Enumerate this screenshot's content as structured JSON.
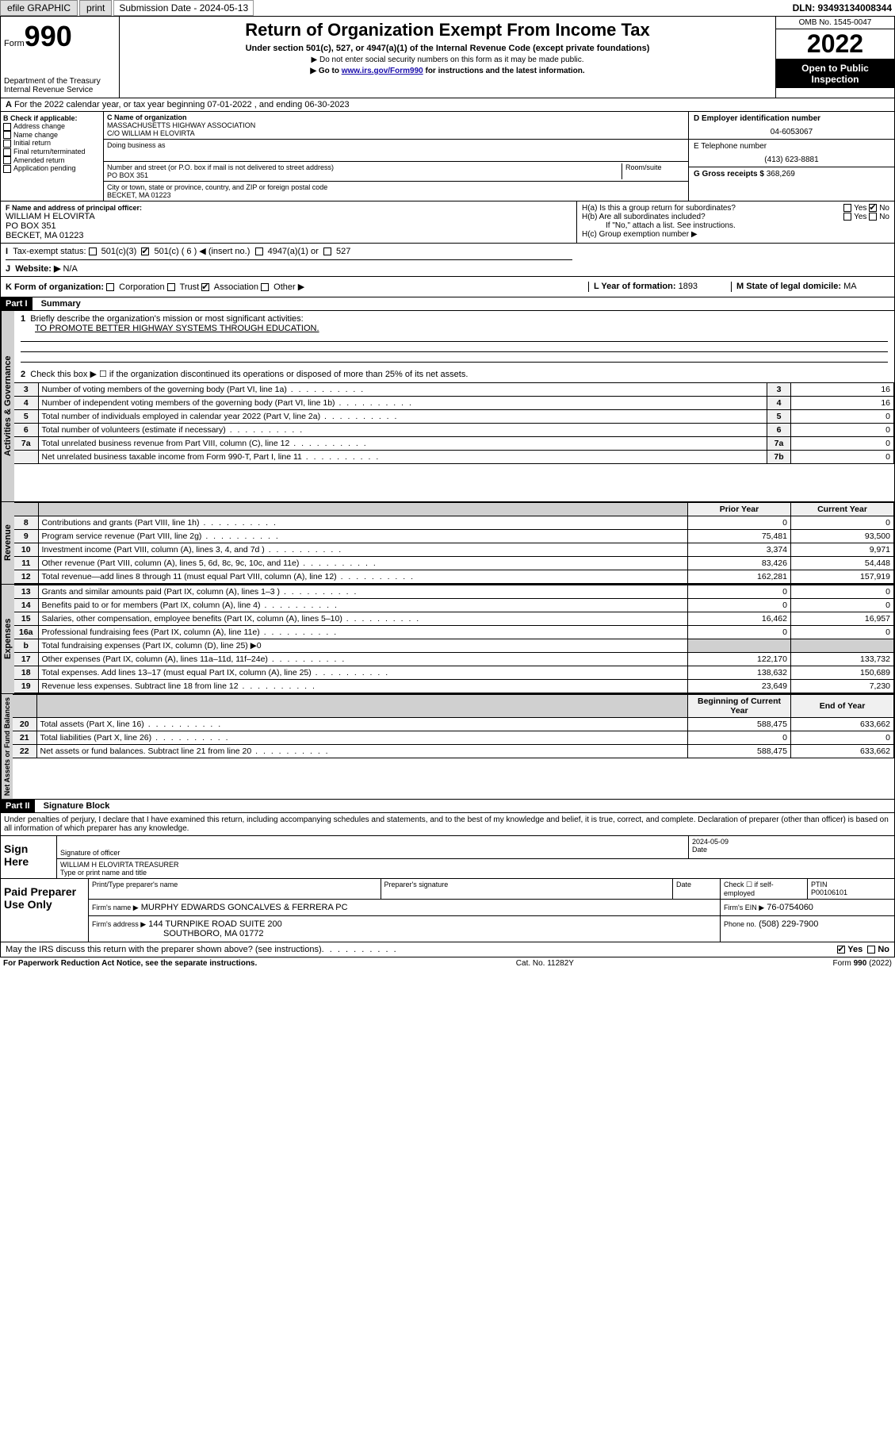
{
  "topbar": {
    "efile": "efile GRAPHIC",
    "print": "print",
    "sub_label": "Submission Date - 2024-05-13",
    "dln": "DLN: 93493134008344"
  },
  "header": {
    "form_word": "Form",
    "form_num": "990",
    "dept": "Department of the Treasury",
    "irs": "Internal Revenue Service",
    "title": "Return of Organization Exempt From Income Tax",
    "subtitle": "Under section 501(c), 527, or 4947(a)(1) of the Internal Revenue Code (except private foundations)",
    "note1": "▶ Do not enter social security numbers on this form as it may be made public.",
    "note2_pre": "▶ Go to ",
    "note2_link": "www.irs.gov/Form990",
    "note2_post": " for instructions and the latest information.",
    "omb": "OMB No. 1545-0047",
    "year": "2022",
    "open": "Open to Public Inspection"
  },
  "A": {
    "text": "For the 2022 calendar year, or tax year beginning 07-01-2022    , and ending 06-30-2023"
  },
  "B": {
    "title": "B Check if applicable:",
    "items": [
      "Address change",
      "Name change",
      "Initial return",
      "Final return/terminated",
      "Amended return",
      "Application pending"
    ]
  },
  "C": {
    "name_label": "C Name of organization",
    "name1": "MASSACHUSETTS HIGHWAY ASSOCIATION",
    "name2": "C/O WILLIAM H ELOVIRTA",
    "dba_label": "Doing business as",
    "street_label": "Number and street (or P.O. box if mail is not delivered to street address)",
    "room_label": "Room/suite",
    "street": "PO BOX 351",
    "city_label": "City or town, state or province, country, and ZIP or foreign postal code",
    "city": "BECKET, MA  01223"
  },
  "D": {
    "label": "D Employer identification number",
    "val": "04-6053067"
  },
  "E": {
    "label": "E Telephone number",
    "val": "(413) 623-8881"
  },
  "G": {
    "label": "G Gross receipts $",
    "val": "368,269"
  },
  "F": {
    "label": "F  Name and address of principal officer:",
    "l1": "WILLIAM H ELOVIRTA",
    "l2": "PO BOX 351",
    "l3": "BECKET, MA  01223"
  },
  "H": {
    "a": "H(a)  Is this a group return for subordinates?",
    "b": "H(b)  Are all subordinates included?",
    "b_note": "If \"No,\" attach a list. See instructions.",
    "c": "H(c)  Group exemption number ▶"
  },
  "I": {
    "label": "Tax-exempt status:",
    "o1": "501(c)(3)",
    "o2": "501(c) ( 6 ) ◀ (insert no.)",
    "o3": "4947(a)(1) or",
    "o4": "527"
  },
  "J": {
    "label": "Website: ▶",
    "val": "N/A"
  },
  "K": {
    "label": "K Form of organization:",
    "opts": [
      "Corporation",
      "Trust",
      "Association",
      "Other ▶"
    ],
    "checked": 2
  },
  "L": {
    "label": "L Year of formation:",
    "val": "1893"
  },
  "M": {
    "label": "M State of legal domicile:",
    "val": "MA"
  },
  "part1": {
    "header": "Part I",
    "title": "Summary",
    "q1": "Briefly describe the organization's mission or most significant activities:",
    "q1v": "TO PROMOTE BETTER HIGHWAY SYSTEMS THROUGH EDUCATION.",
    "q2": "Check this box ▶ ☐  if the organization discontinued its operations or disposed of more than 25% of its net assets.",
    "vtab_gov": "Activities & Governance",
    "vtab_rev": "Revenue",
    "vtab_exp": "Expenses",
    "vtab_net": "Net Assets or Fund Balances",
    "hdr_prior": "Prior Year",
    "hdr_curr": "Current Year",
    "hdr_begin": "Beginning of Current Year",
    "hdr_end": "End of Year",
    "rows_gov": [
      {
        "n": "3",
        "label": "Number of voting members of the governing body (Part VI, line 1a)",
        "box": "3",
        "v": "16"
      },
      {
        "n": "4",
        "label": "Number of independent voting members of the governing body (Part VI, line 1b)",
        "box": "4",
        "v": "16"
      },
      {
        "n": "5",
        "label": "Total number of individuals employed in calendar year 2022 (Part V, line 2a)",
        "box": "5",
        "v": "0"
      },
      {
        "n": "6",
        "label": "Total number of volunteers (estimate if necessary)",
        "box": "6",
        "v": "0"
      },
      {
        "n": "7a",
        "label": "Total unrelated business revenue from Part VIII, column (C), line 12",
        "box": "7a",
        "v": "0"
      },
      {
        "n": "",
        "label": "Net unrelated business taxable income from Form 990-T, Part I, line 11",
        "box": "7b",
        "v": "0"
      }
    ],
    "rows_rev": [
      {
        "n": "8",
        "label": "Contributions and grants (Part VIII, line 1h)",
        "p": "0",
        "c": "0"
      },
      {
        "n": "9",
        "label": "Program service revenue (Part VIII, line 2g)",
        "p": "75,481",
        "c": "93,500"
      },
      {
        "n": "10",
        "label": "Investment income (Part VIII, column (A), lines 3, 4, and 7d )",
        "p": "3,374",
        "c": "9,971"
      },
      {
        "n": "11",
        "label": "Other revenue (Part VIII, column (A), lines 5, 6d, 8c, 9c, 10c, and 11e)",
        "p": "83,426",
        "c": "54,448"
      },
      {
        "n": "12",
        "label": "Total revenue—add lines 8 through 11 (must equal Part VIII, column (A), line 12)",
        "p": "162,281",
        "c": "157,919"
      }
    ],
    "rows_exp": [
      {
        "n": "13",
        "label": "Grants and similar amounts paid (Part IX, column (A), lines 1–3 )",
        "p": "0",
        "c": "0"
      },
      {
        "n": "14",
        "label": "Benefits paid to or for members (Part IX, column (A), line 4)",
        "p": "0",
        "c": "0"
      },
      {
        "n": "15",
        "label": "Salaries, other compensation, employee benefits (Part IX, column (A), lines 5–10)",
        "p": "16,462",
        "c": "16,957"
      },
      {
        "n": "16a",
        "label": "Professional fundraising fees (Part IX, column (A), line 11e)",
        "p": "0",
        "c": "0"
      },
      {
        "n": "b",
        "label": "Total fundraising expenses (Part IX, column (D), line 25) ▶0",
        "p": "",
        "c": ""
      },
      {
        "n": "17",
        "label": "Other expenses (Part IX, column (A), lines 11a–11d, 11f–24e)",
        "p": "122,170",
        "c": "133,732"
      },
      {
        "n": "18",
        "label": "Total expenses. Add lines 13–17 (must equal Part IX, column (A), line 25)",
        "p": "138,632",
        "c": "150,689"
      },
      {
        "n": "19",
        "label": "Revenue less expenses. Subtract line 18 from line 12",
        "p": "23,649",
        "c": "7,230"
      }
    ],
    "rows_net": [
      {
        "n": "20",
        "label": "Total assets (Part X, line 16)",
        "p": "588,475",
        "c": "633,662"
      },
      {
        "n": "21",
        "label": "Total liabilities (Part X, line 26)",
        "p": "0",
        "c": "0"
      },
      {
        "n": "22",
        "label": "Net assets or fund balances. Subtract line 21 from line 20",
        "p": "588,475",
        "c": "633,662"
      }
    ]
  },
  "part2": {
    "header": "Part II",
    "title": "Signature Block",
    "disclaimer": "Under penalties of perjury, I declare that I have examined this return, including accompanying schedules and statements, and to the best of my knowledge and belief, it is true, correct, and complete. Declaration of preparer (other than officer) is based on all information of which preparer has any knowledge.",
    "sign_here": "Sign Here",
    "sig_officer": "Signature of officer",
    "sig_date": "2024-05-09",
    "date_label": "Date",
    "officer_name": "WILLIAM H ELOVIRTA  TREASURER",
    "type_name": "Type or print name and title",
    "paid": "Paid Preparer Use Only",
    "p_name_label": "Print/Type preparer's name",
    "p_sig_label": "Preparer's signature",
    "p_date_label": "Date",
    "p_check": "Check ☐ if self-employed",
    "ptin_label": "PTIN",
    "ptin": "P00106101",
    "firm_name_label": "Firm's name    ▶",
    "firm_name": "MURPHY EDWARDS GONCALVES & FERRERA PC",
    "firm_ein_label": "Firm's EIN ▶",
    "firm_ein": "76-0754060",
    "firm_addr_label": "Firm's address ▶",
    "firm_addr1": "144 TURNPIKE ROAD SUITE 200",
    "firm_addr2": "SOUTHBORO, MA  01772",
    "phone_label": "Phone no.",
    "phone": "(508) 229-7900",
    "may_irs": "May the IRS discuss this return with the preparer shown above? (see instructions)",
    "yes": "Yes",
    "no": "No"
  },
  "footer": {
    "left": "For Paperwork Reduction Act Notice, see the separate instructions.",
    "mid": "Cat. No. 11282Y",
    "right": "Form 990 (2022)"
  }
}
